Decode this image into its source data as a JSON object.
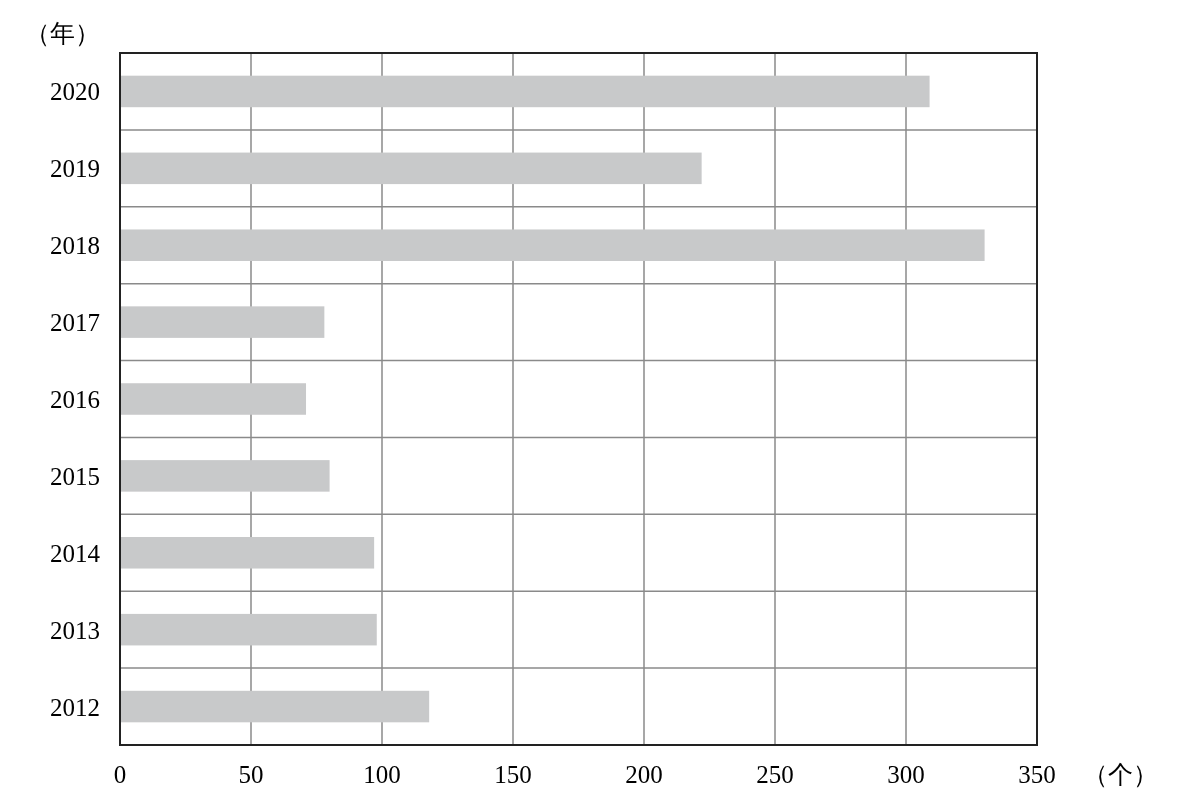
{
  "chart_data": {
    "type": "bar",
    "orientation": "horizontal",
    "ylabel": "（年）",
    "xlabel": "（个）",
    "categories": [
      "2020",
      "2019",
      "2018",
      "2017",
      "2016",
      "2015",
      "2014",
      "2013",
      "2012"
    ],
    "values": [
      309,
      222,
      330,
      78,
      71,
      80,
      97,
      98,
      118
    ],
    "color": "#c8c9ca",
    "xlim": [
      0,
      350
    ],
    "xticks": [
      0,
      50,
      100,
      150,
      200,
      250,
      300,
      350
    ],
    "grid": true
  }
}
